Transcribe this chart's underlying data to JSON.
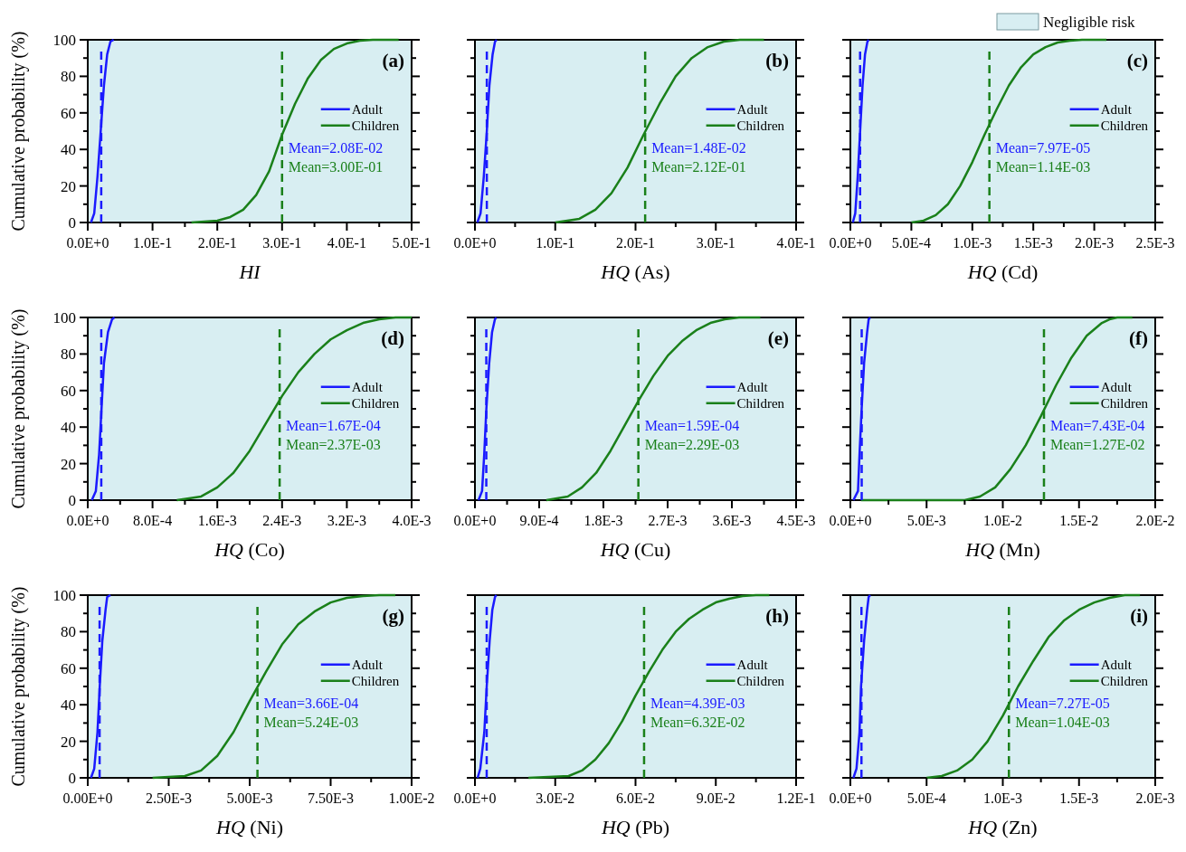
{
  "chart_data": [
    {
      "type": "line",
      "xlabel": "HI",
      "ylabel": "Cumulative probability (%)",
      "xlim": [
        0,
        0.5
      ],
      "ylim": [
        0,
        100
      ],
      "xticks": [
        {
          "value": 0,
          "label": "0.0E+0"
        },
        {
          "value": 0.05,
          "label": null
        },
        {
          "value": 0.1,
          "label": "1.0E-1"
        },
        {
          "value": 0.15,
          "label": null
        },
        {
          "value": 0.2,
          "label": "2.0E-1"
        },
        {
          "value": 0.25,
          "label": null
        },
        {
          "value": 0.3,
          "label": "3.0E-1"
        },
        {
          "value": 0.35,
          "label": null
        },
        {
          "value": 0.4,
          "label": "4.0E-1"
        },
        {
          "value": 0.45,
          "label": null
        },
        {
          "value": 0.5,
          "label": "5.0E-1"
        }
      ],
      "yticks": [
        0,
        {
          "value": 10,
          "label": null
        },
        20,
        {
          "value": 30,
          "label": null
        },
        40,
        {
          "value": 50,
          "label": null
        },
        60,
        {
          "value": 70,
          "label": null
        },
        80,
        {
          "value": 90,
          "label": null
        },
        100
      ],
      "legend": "right",
      "annotations": [
        "(a)",
        "Mean=2.08E-02",
        "Mean=3.00E-01"
      ],
      "series": [
        {
          "name": "Adult",
          "color": "#1a1aff",
          "x": [
            0.005,
            0.01,
            0.015,
            0.02,
            0.025,
            0.03,
            0.035,
            0.04
          ],
          "values": [
            0,
            5,
            25,
            50,
            75,
            92,
            99,
            100
          ]
        },
        {
          "name": "Children",
          "color": "#1a801a",
          "x": [
            0.16,
            0.2,
            0.22,
            0.24,
            0.26,
            0.28,
            0.3,
            0.32,
            0.34,
            0.36,
            0.38,
            0.4,
            0.42,
            0.44,
            0.48
          ],
          "values": [
            0,
            1,
            3,
            7,
            15,
            28,
            48,
            65,
            79,
            89,
            95,
            98,
            99.5,
            100,
            100
          ]
        }
      ],
      "ref_lines": [
        {
          "axis": "x",
          "value": 0.0208,
          "color": "#1a1aff",
          "line_style": "dashed"
        },
        {
          "axis": "x",
          "value": 0.3,
          "color": "#1a801a",
          "line_style": "dashed"
        }
      ],
      "bands": [
        {
          "axis": "x",
          "from": 0,
          "to": 0.5,
          "color": "#d8eef2"
        }
      ]
    },
    {
      "type": "line",
      "xlabel": "HQ (As)",
      "tick_labels": "x",
      "xlim": [
        0,
        0.4
      ],
      "ylim": [
        0,
        100
      ],
      "xticks": [
        {
          "value": 0,
          "label": "0.0E+0"
        },
        {
          "value": 0.05,
          "label": null
        },
        {
          "value": 0.1,
          "label": "1.0E-1"
        },
        {
          "value": 0.15,
          "label": null
        },
        {
          "value": 0.2,
          "label": "2.0E-1"
        },
        {
          "value": 0.25,
          "label": null
        },
        {
          "value": 0.3,
          "label": "3.0E-1"
        },
        {
          "value": 0.35,
          "label": null
        },
        {
          "value": 0.4,
          "label": "4.0E-1"
        }
      ],
      "yticks": [
        0,
        {
          "value": 10,
          "label": null
        },
        20,
        {
          "value": 30,
          "label": null
        },
        40,
        {
          "value": 50,
          "label": null
        },
        60,
        {
          "value": 70,
          "label": null
        },
        80,
        {
          "value": 90,
          "label": null
        },
        100
      ],
      "legend": "right",
      "annotations": [
        "(b)",
        "Mean=1.48E-02",
        "Mean=2.12E-01"
      ],
      "series": [
        {
          "name": "Adult",
          "color": "#1a1aff",
          "x": [
            0.003,
            0.007,
            0.011,
            0.0148,
            0.018,
            0.022,
            0.025,
            0.027
          ],
          "values": [
            0,
            5,
            25,
            50,
            75,
            92,
            99,
            100
          ]
        },
        {
          "name": "Children",
          "color": "#1a801a",
          "x": [
            0.1,
            0.13,
            0.15,
            0.17,
            0.19,
            0.21,
            0.23,
            0.25,
            0.27,
            0.29,
            0.31,
            0.33,
            0.36
          ],
          "values": [
            0,
            2,
            7,
            16,
            30,
            48,
            65,
            80,
            90,
            96,
            99,
            100,
            100
          ]
        }
      ],
      "ref_lines": [
        {
          "axis": "x",
          "value": 0.0148,
          "color": "#1a1aff",
          "line_style": "dashed"
        },
        {
          "axis": "x",
          "value": 0.212,
          "color": "#1a801a",
          "line_style": "dashed"
        }
      ],
      "bands": [
        {
          "axis": "x",
          "from": 0,
          "to": 0.4,
          "color": "#d8eef2"
        }
      ]
    },
    {
      "type": "line",
      "xlabel": "HQ (Cd)",
      "tick_labels": "x",
      "xlim": [
        0,
        0.0025
      ],
      "ylim": [
        0,
        100
      ],
      "xticks": [
        {
          "value": 0,
          "label": "0.0E+0"
        },
        {
          "value": 0.00025,
          "label": null
        },
        {
          "value": 0.0005,
          "label": "5.0E-4"
        },
        {
          "value": 0.00075,
          "label": null
        },
        {
          "value": 0.001,
          "label": "1.0E-3"
        },
        {
          "value": 0.00125,
          "label": null
        },
        {
          "value": 0.0015,
          "label": "1.5E-3"
        },
        {
          "value": 0.00175,
          "label": null
        },
        {
          "value": 0.002,
          "label": "2.0E-3"
        },
        {
          "value": 0.00225,
          "label": null
        },
        {
          "value": 0.0025,
          "label": "2.5E-3"
        }
      ],
      "yticks": [
        0,
        {
          "value": 10,
          "label": null
        },
        20,
        {
          "value": 30,
          "label": null
        },
        40,
        {
          "value": 50,
          "label": null
        },
        60,
        {
          "value": 70,
          "label": null
        },
        80,
        {
          "value": 90,
          "label": null
        },
        100
      ],
      "legend": "right",
      "annotations": [
        "(c)",
        "Mean=7.97E-05",
        "Mean=1.14E-03"
      ],
      "series": [
        {
          "name": "Adult",
          "color": "#1a1aff",
          "x": [
            2e-05,
            4e-05,
            6e-05,
            8e-05,
            0.0001,
            0.00012,
            0.00014,
            0.00015
          ],
          "values": [
            0,
            5,
            25,
            50,
            75,
            92,
            99,
            100
          ]
        },
        {
          "name": "Children",
          "color": "#1a801a",
          "x": [
            0.0005,
            0.0006,
            0.0007,
            0.0008,
            0.0009,
            0.001,
            0.0011,
            0.0012,
            0.0013,
            0.0014,
            0.0015,
            0.0016,
            0.0017,
            0.0018,
            0.0019,
            0.0021
          ],
          "values": [
            0,
            1,
            4,
            10,
            20,
            33,
            48,
            62,
            75,
            85,
            92,
            96,
            98.5,
            99.5,
            100,
            100
          ]
        }
      ],
      "ref_lines": [
        {
          "axis": "x",
          "value": 7.97e-05,
          "color": "#1a1aff",
          "line_style": "dashed"
        },
        {
          "axis": "x",
          "value": 0.00114,
          "color": "#1a801a",
          "line_style": "dashed"
        }
      ],
      "bands": [
        {
          "axis": "x",
          "from": 0,
          "to": 0.0025,
          "color": "#d8eef2",
          "label": "Negligible risk"
        }
      ]
    },
    {
      "type": "line",
      "xlabel": "HQ (Co)",
      "ylabel": "Cumulative probability (%)",
      "xlim": [
        0,
        0.004
      ],
      "ylim": [
        0,
        100
      ],
      "xticks": [
        {
          "value": 0,
          "label": "0.0E+0"
        },
        {
          "value": 0.0004,
          "label": null
        },
        {
          "value": 0.0008,
          "label": "8.0E-4"
        },
        {
          "value": 0.0012,
          "label": null
        },
        {
          "value": 0.0016,
          "label": "1.6E-3"
        },
        {
          "value": 0.002,
          "label": null
        },
        {
          "value": 0.0024,
          "label": "2.4E-3"
        },
        {
          "value": 0.0028,
          "label": null
        },
        {
          "value": 0.0032,
          "label": "3.2E-3"
        },
        {
          "value": 0.0036,
          "label": null
        },
        {
          "value": 0.004,
          "label": "4.0E-3"
        }
      ],
      "yticks": [
        0,
        {
          "value": 10,
          "label": null
        },
        20,
        {
          "value": 30,
          "label": null
        },
        40,
        {
          "value": 50,
          "label": null
        },
        60,
        {
          "value": 70,
          "label": null
        },
        80,
        {
          "value": 90,
          "label": null
        },
        100
      ],
      "legend": "right",
      "annotations": [
        "(d)",
        "Mean=1.67E-04",
        "Mean=2.37E-03"
      ],
      "series": [
        {
          "name": "Adult",
          "color": "#1a1aff",
          "x": [
            5e-05,
            0.0001,
            0.00014,
            0.00017,
            0.0002,
            0.00025,
            0.0003,
            0.00033
          ],
          "values": [
            0,
            5,
            25,
            50,
            75,
            92,
            99,
            100
          ]
        },
        {
          "name": "Children",
          "color": "#1a801a",
          "x": [
            0.0011,
            0.0014,
            0.0016,
            0.0018,
            0.002,
            0.0022,
            0.0024,
            0.0026,
            0.0028,
            0.003,
            0.0032,
            0.0034,
            0.0036,
            0.0038,
            0.004
          ],
          "values": [
            0,
            2,
            7,
            15,
            27,
            42,
            57,
            70,
            80,
            88,
            93,
            97,
            99,
            100,
            100
          ]
        }
      ],
      "ref_lines": [
        {
          "axis": "x",
          "value": 0.000167,
          "color": "#1a1aff",
          "line_style": "dashed"
        },
        {
          "axis": "x",
          "value": 0.00237,
          "color": "#1a801a",
          "line_style": "dashed"
        }
      ],
      "bands": [
        {
          "axis": "x",
          "from": 0,
          "to": 0.004,
          "color": "#d8eef2"
        }
      ]
    },
    {
      "type": "line",
      "xlabel": "HQ (Cu)",
      "tick_labels": "x",
      "xlim": [
        0,
        0.0045
      ],
      "ylim": [
        0,
        100
      ],
      "xticks": [
        {
          "value": 0,
          "label": "0.0E+0"
        },
        {
          "value": 0.00045,
          "label": null
        },
        {
          "value": 0.0009,
          "label": "9.0E-4"
        },
        {
          "value": 0.00135,
          "label": null
        },
        {
          "value": 0.0018,
          "label": "1.8E-3"
        },
        {
          "value": 0.00225,
          "label": null
        },
        {
          "value": 0.0027,
          "label": "2.7E-3"
        },
        {
          "value": 0.00315,
          "label": null
        },
        {
          "value": 0.0036,
          "label": "3.6E-3"
        },
        {
          "value": 0.00405,
          "label": null
        },
        {
          "value": 0.0045,
          "label": "4.5E-3"
        }
      ],
      "yticks": [
        0,
        {
          "value": 10,
          "label": null
        },
        20,
        {
          "value": 30,
          "label": null
        },
        40,
        {
          "value": 50,
          "label": null
        },
        60,
        {
          "value": 70,
          "label": null
        },
        80,
        {
          "value": 90,
          "label": null
        },
        100
      ],
      "legend": "right",
      "annotations": [
        "(e)",
        "Mean=1.59E-04",
        "Mean=2.29E-03"
      ],
      "series": [
        {
          "name": "Adult",
          "color": "#1a1aff",
          "x": [
            5e-05,
            0.0001,
            0.00013,
            0.00016,
            0.0002,
            0.00024,
            0.00028,
            0.0003
          ],
          "values": [
            0,
            5,
            25,
            50,
            75,
            92,
            99,
            100
          ]
        },
        {
          "name": "Children",
          "color": "#1a801a",
          "x": [
            0.001,
            0.0013,
            0.0015,
            0.0017,
            0.0019,
            0.0021,
            0.0023,
            0.0025,
            0.0027,
            0.0029,
            0.0031,
            0.0033,
            0.0035,
            0.0037,
            0.004
          ],
          "values": [
            0,
            2,
            7,
            15,
            27,
            41,
            55,
            68,
            79,
            87,
            93,
            97,
            99,
            100,
            100
          ]
        }
      ],
      "ref_lines": [
        {
          "axis": "x",
          "value": 0.000159,
          "color": "#1a1aff",
          "line_style": "dashed"
        },
        {
          "axis": "x",
          "value": 0.00229,
          "color": "#1a801a",
          "line_style": "dashed"
        }
      ],
      "bands": [
        {
          "axis": "x",
          "from": 0,
          "to": 0.0045,
          "color": "#d8eef2"
        }
      ]
    },
    {
      "type": "line",
      "xlabel": "HQ (Mn)",
      "tick_labels": "x",
      "xlim": [
        0,
        0.02
      ],
      "ylim": [
        0,
        100
      ],
      "xticks": [
        {
          "value": 0,
          "label": "0.0E+0"
        },
        {
          "value": 0.0025,
          "label": null
        },
        {
          "value": 0.005,
          "label": "5.0E-3"
        },
        {
          "value": 0.0075,
          "label": null
        },
        {
          "value": 0.01,
          "label": "1.0E-2"
        },
        {
          "value": 0.0125,
          "label": null
        },
        {
          "value": 0.015,
          "label": "1.5E-2"
        },
        {
          "value": 0.0175,
          "label": null
        },
        {
          "value": 0.02,
          "label": "2.0E-2"
        }
      ],
      "yticks": [
        0,
        {
          "value": 10,
          "label": null
        },
        20,
        {
          "value": 30,
          "label": null
        },
        40,
        {
          "value": 50,
          "label": null
        },
        60,
        {
          "value": 70,
          "label": null
        },
        80,
        {
          "value": 90,
          "label": null
        },
        100
      ],
      "legend": "right",
      "annotations": [
        "(f)",
        "Mean=7.43E-04",
        "Mean=1.27E-02"
      ],
      "series": [
        {
          "name": "Adult",
          "color": "#1a1aff",
          "x": [
            0.0002,
            0.0005,
            0.0006,
            0.00074,
            0.0009,
            0.0011,
            0.0012,
            0.0013
          ],
          "values": [
            0,
            5,
            25,
            50,
            75,
            92,
            99,
            100
          ]
        },
        {
          "name": "Children",
          "color": "#1a801a",
          "x": [
            0.0007,
            0.0075,
            0.0085,
            0.0095,
            0.0105,
            0.0115,
            0.0125,
            0.0135,
            0.0145,
            0.0155,
            0.0165,
            0.017,
            0.0175,
            0.0185
          ],
          "values": [
            0,
            0,
            2,
            7,
            17,
            30,
            46,
            63,
            78,
            90,
            97,
            99,
            100,
            100
          ]
        }
      ],
      "ref_lines": [
        {
          "axis": "x",
          "value": 0.000743,
          "color": "#1a1aff",
          "line_style": "dashed"
        },
        {
          "axis": "x",
          "value": 0.0127,
          "color": "#1a801a",
          "line_style": "dashed"
        }
      ],
      "bands": [
        {
          "axis": "x",
          "from": 0,
          "to": 0.02,
          "color": "#d8eef2"
        }
      ]
    },
    {
      "type": "line",
      "xlabel": "HQ (Ni)",
      "ylabel": "Cumulative probability (%)",
      "xlim": [
        0,
        0.01
      ],
      "ylim": [
        0,
        100
      ],
      "xticks": [
        {
          "value": 0,
          "label": "0.00E+0"
        },
        {
          "value": 0.00125,
          "label": null
        },
        {
          "value": 0.0025,
          "label": "2.50E-3"
        },
        {
          "value": 0.00375,
          "label": null
        },
        {
          "value": 0.005,
          "label": "5.00E-3"
        },
        {
          "value": 0.00625,
          "label": null
        },
        {
          "value": 0.0075,
          "label": "7.50E-3"
        },
        {
          "value": 0.00875,
          "label": null
        },
        {
          "value": 0.01,
          "label": "1.00E-2"
        }
      ],
      "yticks": [
        0,
        {
          "value": 10,
          "label": null
        },
        20,
        {
          "value": 30,
          "label": null
        },
        40,
        {
          "value": 50,
          "label": null
        },
        60,
        {
          "value": 70,
          "label": null
        },
        80,
        {
          "value": 90,
          "label": null
        },
        100
      ],
      "legend": "right",
      "annotations": [
        "(g)",
        "Mean=3.66E-04",
        "Mean=5.24E-03"
      ],
      "series": [
        {
          "name": "Adult",
          "color": "#1a1aff",
          "x": [
            0.0001,
            0.0002,
            0.0003,
            0.00037,
            0.00045,
            0.00055,
            0.0006,
            0.0007
          ],
          "values": [
            0,
            5,
            25,
            50,
            75,
            92,
            99,
            100
          ]
        },
        {
          "name": "Children",
          "color": "#1a801a",
          "x": [
            0.002,
            0.003,
            0.0035,
            0.004,
            0.0045,
            0.005,
            0.0055,
            0.006,
            0.0065,
            0.007,
            0.0075,
            0.008,
            0.0085,
            0.009,
            0.0095
          ],
          "values": [
            0,
            1,
            4,
            12,
            25,
            42,
            58,
            73,
            84,
            91,
            96,
            98.5,
            99.5,
            100,
            100
          ]
        }
      ],
      "ref_lines": [
        {
          "axis": "x",
          "value": 0.000366,
          "color": "#1a1aff",
          "line_style": "dashed"
        },
        {
          "axis": "x",
          "value": 0.00524,
          "color": "#1a801a",
          "line_style": "dashed"
        }
      ],
      "bands": [
        {
          "axis": "x",
          "from": 0,
          "to": 0.01,
          "color": "#d8eef2"
        }
      ]
    },
    {
      "type": "line",
      "xlabel": "HQ (Pb)",
      "tick_labels": "x",
      "xlim": [
        0,
        0.12
      ],
      "ylim": [
        0,
        100
      ],
      "xticks": [
        {
          "value": 0,
          "label": "0.0E+0"
        },
        {
          "value": 0.015,
          "label": null
        },
        {
          "value": 0.03,
          "label": "3.0E-2"
        },
        {
          "value": 0.045,
          "label": null
        },
        {
          "value": 0.06,
          "label": "6.0E-2"
        },
        {
          "value": 0.075,
          "label": null
        },
        {
          "value": 0.09,
          "label": "9.0E-2"
        },
        {
          "value": 0.105,
          "label": null
        },
        {
          "value": 0.12,
          "label": "1.2E-1"
        }
      ],
      "yticks": [
        0,
        {
          "value": 10,
          "label": null
        },
        20,
        {
          "value": 30,
          "label": null
        },
        40,
        {
          "value": 50,
          "label": null
        },
        60,
        {
          "value": 70,
          "label": null
        },
        80,
        {
          "value": 90,
          "label": null
        },
        100
      ],
      "legend": "right",
      "annotations": [
        "(h)",
        "Mean=4.39E-03",
        "Mean=6.32E-02"
      ],
      "series": [
        {
          "name": "Adult",
          "color": "#1a1aff",
          "x": [
            0.001,
            0.002,
            0.0035,
            0.0044,
            0.0055,
            0.0065,
            0.0075,
            0.008
          ],
          "values": [
            0,
            5,
            25,
            50,
            75,
            92,
            99,
            100
          ]
        },
        {
          "name": "Children",
          "color": "#1a801a",
          "x": [
            0.02,
            0.035,
            0.04,
            0.045,
            0.05,
            0.055,
            0.06,
            0.065,
            0.07,
            0.075,
            0.08,
            0.085,
            0.09,
            0.095,
            0.1,
            0.105,
            0.11
          ],
          "values": [
            0,
            1,
            4,
            10,
            19,
            31,
            45,
            58,
            70,
            80,
            87,
            92,
            96,
            98,
            99.5,
            100,
            100
          ]
        }
      ],
      "ref_lines": [
        {
          "axis": "x",
          "value": 0.00439,
          "color": "#1a1aff",
          "line_style": "dashed"
        },
        {
          "axis": "x",
          "value": 0.0632,
          "color": "#1a801a",
          "line_style": "dashed"
        }
      ],
      "bands": [
        {
          "axis": "x",
          "from": 0,
          "to": 0.12,
          "color": "#d8eef2"
        }
      ]
    },
    {
      "type": "line",
      "xlabel": "HQ (Zn)",
      "tick_labels": "x",
      "xlim": [
        0,
        0.002
      ],
      "ylim": [
        0,
        100
      ],
      "xticks": [
        {
          "value": 0,
          "label": "0.0E+0"
        },
        {
          "value": 0.00025,
          "label": null
        },
        {
          "value": 0.0005,
          "label": "5.0E-4"
        },
        {
          "value": 0.00075,
          "label": null
        },
        {
          "value": 0.001,
          "label": "1.0E-3"
        },
        {
          "value": 0.00125,
          "label": null
        },
        {
          "value": 0.0015,
          "label": "1.5E-3"
        },
        {
          "value": 0.00175,
          "label": null
        },
        {
          "value": 0.002,
          "label": "2.0E-3"
        }
      ],
      "yticks": [
        0,
        {
          "value": 10,
          "label": null
        },
        20,
        {
          "value": 30,
          "label": null
        },
        40,
        {
          "value": 50,
          "label": null
        },
        60,
        {
          "value": 70,
          "label": null
        },
        80,
        {
          "value": 90,
          "label": null
        },
        100
      ],
      "legend": "right",
      "annotations": [
        "(i)",
        "Mean=7.27E-05",
        "Mean=1.04E-03"
      ],
      "series": [
        {
          "name": "Adult",
          "color": "#1a1aff",
          "x": [
            2e-05,
            4e-05,
            6e-05,
            7e-05,
            9e-05,
            0.00011,
            0.00012,
            0.00013
          ],
          "values": [
            0,
            5,
            25,
            50,
            75,
            92,
            99,
            100
          ]
        },
        {
          "name": "Children",
          "color": "#1a801a",
          "x": [
            0.0005,
            0.0006,
            0.0007,
            0.0008,
            0.0009,
            0.001,
            0.0011,
            0.0012,
            0.0013,
            0.0014,
            0.0015,
            0.0016,
            0.0017,
            0.0018,
            0.0019
          ],
          "values": [
            0,
            1,
            4,
            10,
            20,
            34,
            50,
            64,
            77,
            86,
            92,
            96,
            98.5,
            100,
            100
          ]
        }
      ],
      "ref_lines": [
        {
          "axis": "x",
          "value": 7.27e-05,
          "color": "#1a1aff",
          "line_style": "dashed"
        },
        {
          "axis": "x",
          "value": 0.00104,
          "color": "#1a801a",
          "line_style": "dashed"
        }
      ],
      "bands": [
        {
          "axis": "x",
          "from": 0,
          "to": 0.002,
          "color": "#d8eef2"
        }
      ]
    }
  ]
}
